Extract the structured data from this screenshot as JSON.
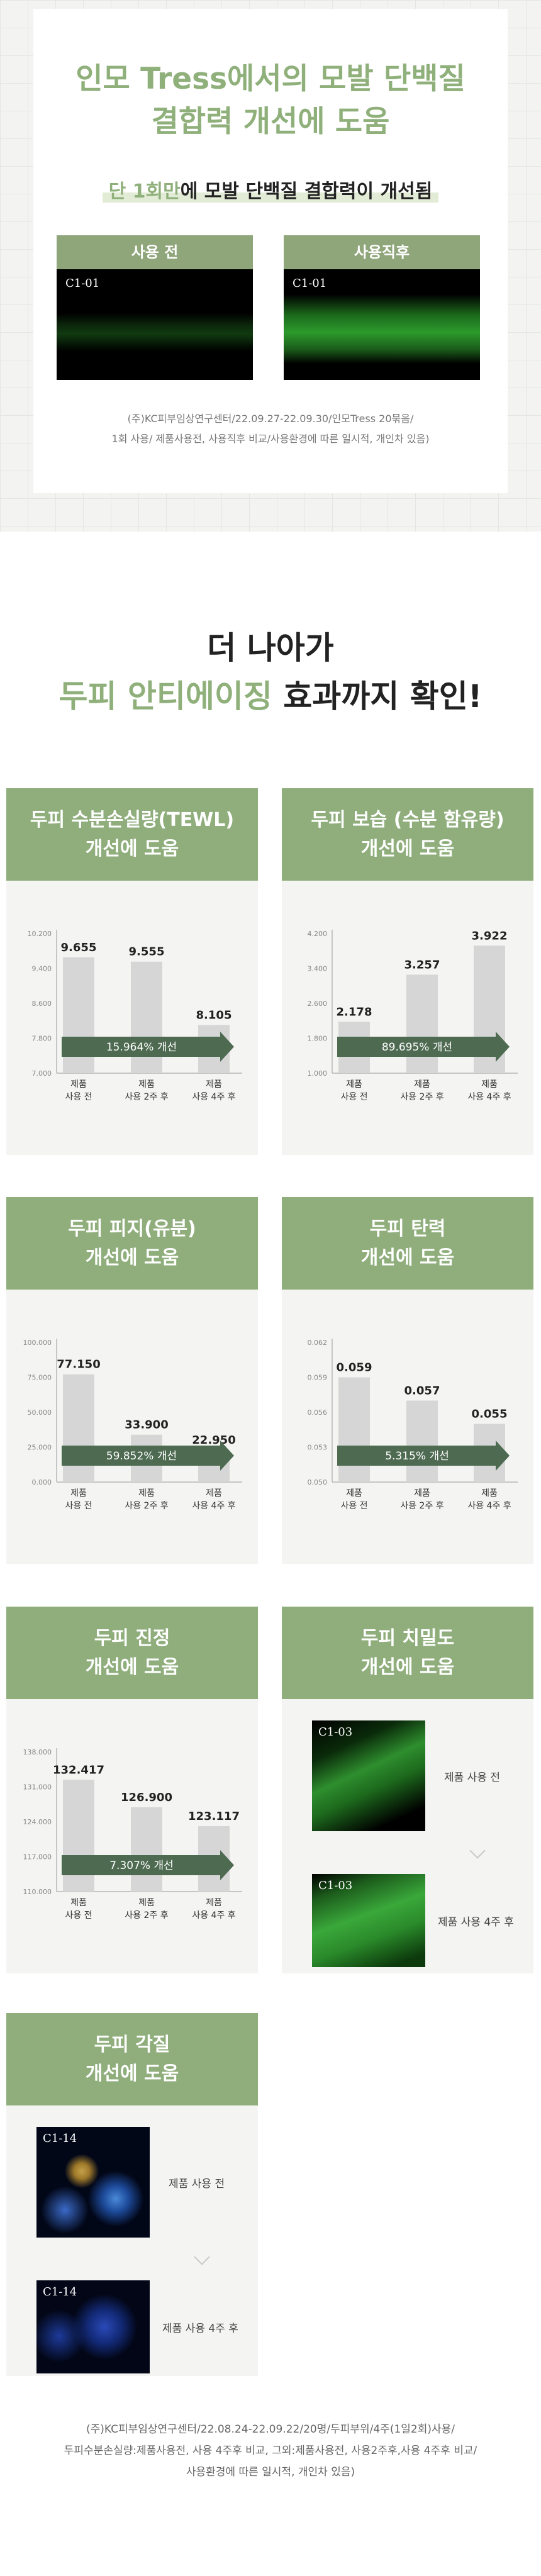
{
  "top": {
    "title_line1": "인모 Tress에서의 모발 단백질",
    "title_line2": "결합력 개선에 도움",
    "subtitle_highlight": "단 1회만",
    "subtitle_rest": "에 모발 단백질 결합력이 개선됨",
    "before_label": "사용 전",
    "after_label": "사용직후",
    "before_sample": "C1-01",
    "after_sample": "C1-01",
    "note_line1": "(주)KC피부임상연구센터/22.09.27-22.09.30/인모Tress 20묶음/",
    "note_line2": "1회 사용/ 제품사용전, 사용직후 비교/사용환경에 따른 일시적, 개인차 있음)"
  },
  "section2": {
    "title_line1": "더 나아가",
    "title_line2_green": "두피 안티에이징",
    "title_line2_rest": " 효과까지 확인!"
  },
  "cards": [
    {
      "title1": "두피 수분손실량(TEWL)",
      "title2": "개선에 도움"
    },
    {
      "title1": "두피 보습 (수분 함유량)",
      "title2": "개선에 도움"
    },
    {
      "title1": "두피 피지(유분)",
      "title2": "개선에 도움"
    },
    {
      "title1": "두피 탄력",
      "title2": "개선에 도움"
    },
    {
      "title1": "두피 진정",
      "title2": "개선에 도움"
    },
    {
      "title1": "두피 치밀도",
      "title2": "개선에 도움"
    },
    {
      "title1": "두피 각질",
      "title2": "개선에 도움"
    }
  ],
  "chart_data": [
    {
      "type": "bar",
      "categories": [
        [
          "제품",
          "사용 전"
        ],
        [
          "제품",
          "사용 2주 후"
        ],
        [
          "제품",
          "사용 4주 후"
        ]
      ],
      "values": [
        9.655,
        9.555,
        8.105
      ],
      "value_labels": [
        "9.655",
        "9.555",
        "8.105"
      ],
      "ylim": [
        7.0,
        10.2
      ],
      "yticks": [
        "7.000",
        "7.800",
        "8.600",
        "9.400",
        "10.200"
      ],
      "arrow_label": "15.964% 개선"
    },
    {
      "type": "bar",
      "categories": [
        [
          "제품",
          "사용 전"
        ],
        [
          "제품",
          "사용 2주 후"
        ],
        [
          "제품",
          "사용 4주 후"
        ]
      ],
      "values": [
        2.178,
        3.257,
        3.922
      ],
      "value_labels": [
        "2.178",
        "3.257",
        "3.922"
      ],
      "ylim": [
        1.0,
        4.2
      ],
      "yticks": [
        "1.000",
        "1.800",
        "2.600",
        "3.400",
        "4.200"
      ],
      "arrow_label": "89.695% 개선"
    },
    {
      "type": "bar",
      "categories": [
        [
          "제품",
          "사용 전"
        ],
        [
          "제품",
          "사용 2주 후"
        ],
        [
          "제품",
          "사용 4주 후"
        ]
      ],
      "values": [
        77.15,
        33.9,
        22.95
      ],
      "value_labels": [
        "77.150",
        "33.900",
        "22.950"
      ],
      "ylim": [
        0,
        100
      ],
      "yticks": [
        "0.000",
        "25.000",
        "50.000",
        "75.000",
        "100.000"
      ],
      "arrow_label": "59.852% 개선"
    },
    {
      "type": "bar",
      "categories": [
        [
          "제품",
          "사용 전"
        ],
        [
          "제품",
          "사용 2주 후"
        ],
        [
          "제품",
          "사용 4주 후"
        ]
      ],
      "values": [
        0.059,
        0.057,
        0.055
      ],
      "value_labels": [
        "0.059",
        "0.057",
        "0.055"
      ],
      "ylim": [
        0.05,
        0.062
      ],
      "yticks": [
        "0.050",
        "0.053",
        "0.056",
        "0.059",
        "0.062"
      ],
      "arrow_label": "5.315% 개선"
    },
    {
      "type": "bar",
      "categories": [
        [
          "제품",
          "사용 전"
        ],
        [
          "제품",
          "사용 2주 후"
        ],
        [
          "제품",
          "사용 4주 후"
        ]
      ],
      "values": [
        132.417,
        126.9,
        123.117
      ],
      "value_labels": [
        "132.417",
        "126.900",
        "123.117"
      ],
      "ylim": [
        110,
        138
      ],
      "yticks": [
        "110.000",
        "117.000",
        "124.000",
        "131.000",
        "138.000"
      ],
      "arrow_label": "7.307% 개선"
    }
  ],
  "density": {
    "sample1": "C1-03",
    "sample2": "C1-03",
    "cap1": "제품 사용 전",
    "cap2": "제품 사용 4주 후"
  },
  "keratin": {
    "sample1": "C1-14",
    "sample2": "C1-14",
    "cap1": "제품 사용 전",
    "cap2": "제품 사용 4주 후"
  },
  "footer": {
    "line1": "(주)KC피부임상연구센터/22.08.24-22.09.22/20명/두피부위/4주(1일2회)사용/",
    "line2": "두피수분손실량:제품사용전, 사용 4주후 비교, 그외:제품사용전, 사용2주후,사용 4주후 비교/",
    "line3": "사용환경에 따른 일시적, 개인차 있음)"
  },
  "colors": {
    "green": "#8fb07a",
    "header_green": "#8fae7c",
    "arrow_dark": "#4e6b52",
    "bar_grey": "#d6d6d6"
  }
}
